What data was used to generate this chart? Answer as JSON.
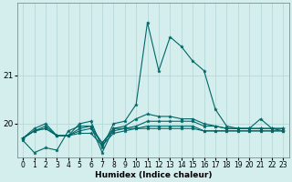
{
  "title": "",
  "xlabel": "Humidex (Indice chaleur)",
  "ylabel": "",
  "bg_color": "#d4eeee",
  "line_color": "#006666",
  "grid_color": "#b8d8d8",
  "xlim": [
    -0.5,
    23.5
  ],
  "ylim": [
    19.3,
    22.5
  ],
  "yticks": [
    20,
    21
  ],
  "xticks": [
    0,
    1,
    2,
    3,
    4,
    5,
    6,
    7,
    8,
    9,
    10,
    11,
    12,
    13,
    14,
    15,
    16,
    17,
    18,
    19,
    20,
    21,
    22,
    23
  ],
  "series": [
    [
      19.7,
      19.85,
      19.9,
      19.75,
      19.75,
      19.8,
      19.8,
      19.55,
      19.8,
      19.85,
      19.9,
      19.95,
      19.95,
      19.95,
      19.95,
      19.95,
      19.85,
      19.85,
      19.85,
      19.85,
      19.85,
      19.85,
      19.85,
      19.85
    ],
    [
      19.7,
      19.85,
      19.9,
      19.75,
      19.75,
      19.85,
      19.9,
      19.6,
      19.85,
      19.9,
      19.95,
      20.05,
      20.05,
      20.05,
      20.05,
      20.05,
      19.95,
      19.95,
      19.9,
      19.9,
      19.9,
      19.9,
      19.9,
      19.9
    ],
    [
      19.7,
      19.85,
      19.95,
      19.75,
      19.75,
      19.9,
      19.95,
      19.4,
      19.9,
      19.95,
      20.1,
      20.2,
      20.15,
      20.15,
      20.1,
      20.1,
      20.0,
      19.95,
      19.9,
      19.9,
      19.9,
      19.9,
      19.9,
      19.9
    ],
    [
      19.7,
      19.9,
      20.0,
      19.75,
      19.75,
      20.0,
      20.05,
      19.5,
      20.0,
      20.05,
      20.4,
      22.1,
      21.1,
      21.8,
      21.6,
      21.3,
      21.1,
      20.3,
      19.95,
      19.9,
      19.9,
      20.1,
      19.9,
      19.85
    ],
    [
      19.65,
      19.4,
      19.5,
      19.45,
      19.85,
      19.95,
      19.95,
      19.6,
      19.9,
      19.9,
      19.9,
      19.9,
      19.9,
      19.9,
      19.9,
      19.9,
      19.85,
      19.85,
      19.85,
      19.85,
      19.85,
      19.85,
      19.85,
      19.85
    ]
  ]
}
